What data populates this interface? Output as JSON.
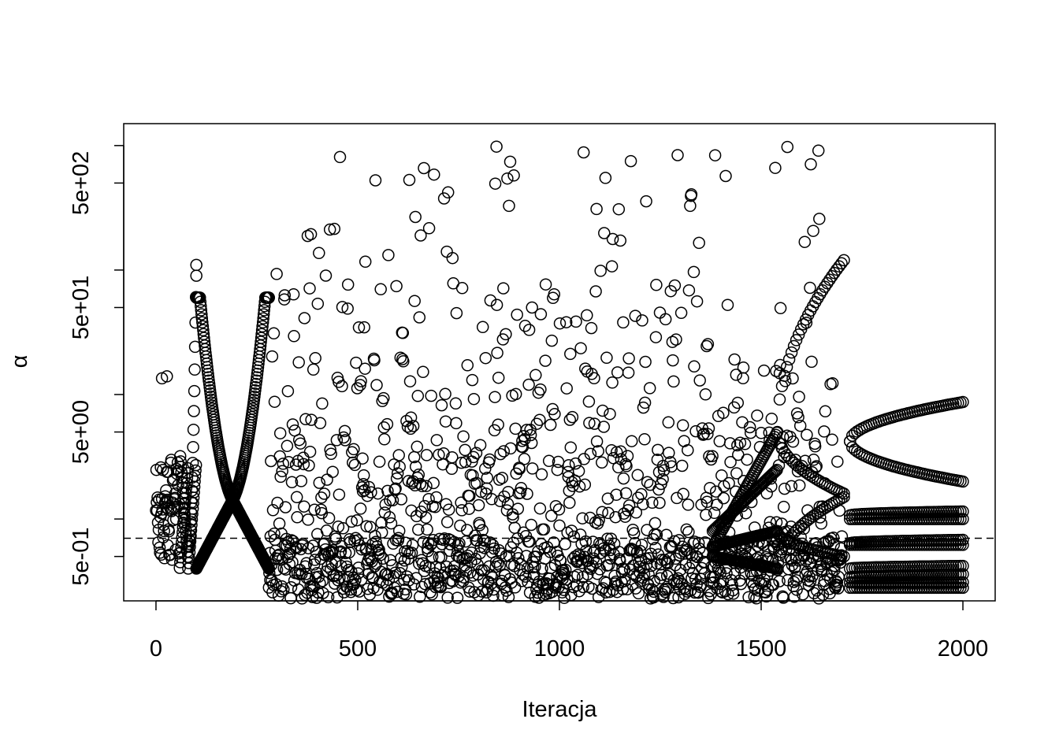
{
  "chart_data": {
    "type": "scatter",
    "xlabel": "Iteracja",
    "ylabel": "α",
    "x_ticks": [
      0,
      500,
      1000,
      1500,
      2000
    ],
    "x_tick_labels": [
      "0",
      "500",
      "1000",
      "1500",
      "2000"
    ],
    "xlim": [
      -80,
      2080
    ],
    "y_scale": "log",
    "ylim": [
      0.22,
      1500
    ],
    "y_major_ticks": [
      0.5,
      5,
      50,
      500
    ],
    "y_tick_labels": [
      "5e-01",
      "5e+00",
      "5e+01",
      "5e+02"
    ],
    "y_minor_ticks": [
      0.1,
      1,
      10,
      100,
      1000
    ],
    "reference_line": {
      "y": 0.7,
      "style": "dashed"
    },
    "marker": "open-circle",
    "grid": false,
    "legend": "none",
    "bands": [
      {
        "x": [
          0,
          60
        ],
        "y": [
          0.4,
          3
        ],
        "density": "sparse"
      },
      {
        "x": [
          60,
          80
        ],
        "y": [
          0.45,
          3
        ],
        "density": "loop"
      },
      {
        "x": [
          80,
          100
        ],
        "y": [
          0.4,
          120
        ],
        "density": "spike"
      },
      {
        "x": [
          100,
          280
        ],
        "y": [
          0.3,
          50
        ],
        "density": "crossing-curves"
      },
      {
        "x": [
          280,
          1700
        ],
        "y": [
          0.23,
          1000
        ],
        "density": "dense-random"
      },
      {
        "x": [
          1380,
          1700
        ],
        "y": [
          0.25,
          120
        ],
        "density": "diverging-tracks"
      },
      {
        "x": [
          1700,
          2000
        ],
        "y": [
          0.25,
          9
        ],
        "density": "parallel-tracks"
      }
    ],
    "tracks": [
      {
        "x": [
          1540,
          1705
        ],
        "y0": 5,
        "y1": 120
      },
      {
        "x": [
          1540,
          1705
        ],
        "y0": 5,
        "y1": 1.6
      },
      {
        "x": [
          1540,
          1705
        ],
        "y0": 0.8,
        "y1": 0.5
      },
      {
        "x": [
          1540,
          1705
        ],
        "y0": 0.4,
        "y1": 1.5
      },
      {
        "x": [
          1720,
          2000
        ],
        "y0": 4.2,
        "y1": 8.7
      },
      {
        "x": [
          1720,
          2000
        ],
        "y0": 4.2,
        "y1": 2.0
      },
      {
        "x": [
          1720,
          2000
        ],
        "y0": 1.07,
        "y1": 1.15
      },
      {
        "x": [
          1720,
          2000
        ],
        "y0": 1.0,
        "y1": 1.0
      },
      {
        "x": [
          1720,
          2000
        ],
        "y0": 0.64,
        "y1": 0.68
      },
      {
        "x": [
          1720,
          2000
        ],
        "y0": 0.62,
        "y1": 0.62
      },
      {
        "x": [
          1720,
          2000
        ],
        "y0": 0.4,
        "y1": 0.42
      },
      {
        "x": [
          1720,
          2000
        ],
        "y0": 0.34,
        "y1": 0.36
      },
      {
        "x": [
          1720,
          2000
        ],
        "y0": 0.31,
        "y1": 0.31
      },
      {
        "x": [
          1720,
          2000
        ],
        "y0": 0.28,
        "y1": 0.28
      }
    ]
  }
}
